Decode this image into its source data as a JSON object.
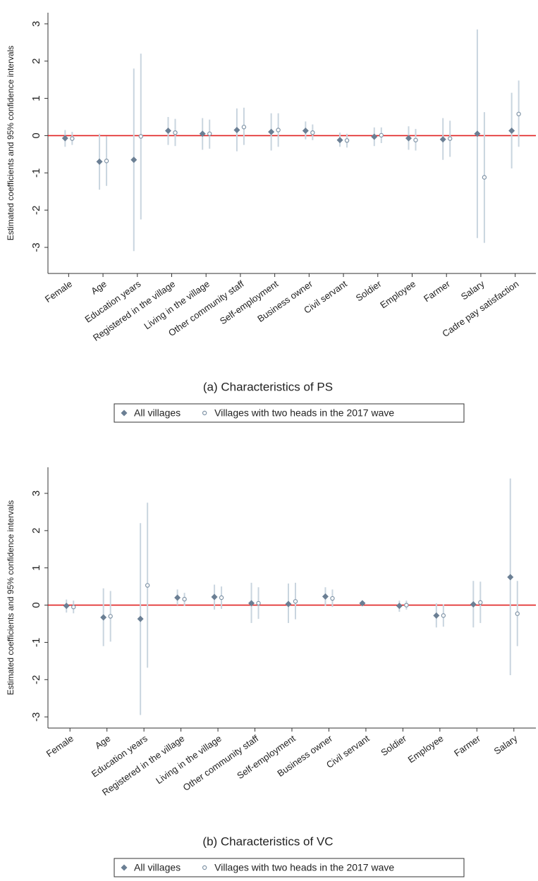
{
  "chart_data": [
    {
      "type": "coefplot",
      "subtitle": "(a) Characteristics of PS",
      "y_label": "Estimated coefficients and 95% confidence intervals",
      "categories": [
        "Female",
        "Age",
        "Education years",
        "Registered in the village",
        "Living in the village",
        "Other community staff",
        "Self-employment",
        "Business owner",
        "Civil servant",
        "Soldier",
        "Employee",
        "Farmer",
        "Salary",
        "Cadre pay satisfaction"
      ],
      "ylim": [
        -3.7,
        3.3
      ],
      "yticks": [
        -3,
        -2,
        -1,
        0,
        1,
        2,
        3
      ],
      "zero_line_color": "#e02020",
      "series": [
        {
          "name": "All villages",
          "color": "#6b7f94",
          "marker": "diamond",
          "values": [
            -0.07,
            -0.7,
            -0.65,
            0.13,
            0.05,
            0.15,
            0.1,
            0.13,
            -0.12,
            -0.03,
            -0.07,
            -0.1,
            0.05,
            0.13
          ],
          "lower": [
            -0.3,
            -1.45,
            -3.1,
            -0.25,
            -0.38,
            -0.42,
            -0.4,
            -0.1,
            -0.3,
            -0.28,
            -0.38,
            -0.65,
            -2.75,
            -0.88
          ],
          "upper": [
            0.15,
            0.05,
            1.8,
            0.5,
            0.47,
            0.73,
            0.6,
            0.38,
            0.08,
            0.22,
            0.25,
            0.47,
            2.85,
            1.15
          ]
        },
        {
          "name": "Villages with two heads in the 2017 wave",
          "color": "#7f93a6",
          "marker": "circle",
          "values": [
            -0.08,
            -0.68,
            -0.02,
            0.08,
            0.05,
            0.23,
            0.15,
            0.08,
            -0.13,
            0.01,
            -0.12,
            -0.08,
            -1.12,
            0.58
          ],
          "lower": [
            -0.25,
            -1.35,
            -2.25,
            -0.28,
            -0.35,
            -0.25,
            -0.3,
            -0.12,
            -0.32,
            -0.2,
            -0.4,
            -0.57,
            -2.88,
            -0.3
          ],
          "upper": [
            0.1,
            -0.02,
            2.2,
            0.45,
            0.43,
            0.75,
            0.6,
            0.3,
            0.05,
            0.22,
            0.18,
            0.4,
            0.63,
            1.48
          ]
        }
      ]
    },
    {
      "type": "coefplot",
      "subtitle": "(b) Characteristics of VC",
      "y_label": "Estimated coefficients and 95% confidence intervals",
      "categories": [
        "Female",
        "Age",
        "Education years",
        "Registered in the village",
        "Living in the village",
        "Other community staff",
        "Self-employment",
        "Business owner",
        "Civil servant",
        "Soldier",
        "Employee",
        "Farmer",
        "Salary"
      ],
      "ylim": [
        -3.3,
        3.7
      ],
      "yticks": [
        -3,
        -2,
        -1,
        0,
        1,
        2,
        3
      ],
      "zero_line_color": "#e02020",
      "series": [
        {
          "name": "All villages",
          "color": "#6b7f94",
          "marker": "diamond",
          "values": [
            -0.02,
            -0.33,
            -0.37,
            0.2,
            0.22,
            0.05,
            0.03,
            0.23,
            0.05,
            -0.02,
            -0.28,
            0.02,
            0.75
          ],
          "lower": [
            -0.2,
            -1.1,
            -2.95,
            0,
            -0.12,
            -0.48,
            -0.48,
            -0.02,
            0.02,
            -0.18,
            -0.6,
            -0.6,
            -1.88
          ],
          "upper": [
            0.15,
            0.45,
            2.2,
            0.42,
            0.55,
            0.6,
            0.58,
            0.48,
            0.08,
            0.12,
            0.05,
            0.65,
            3.4
          ]
        },
        {
          "name": "Villages with two heads in the 2017 wave",
          "color": "#7f93a6",
          "marker": "circle",
          "values": [
            -0.05,
            -0.3,
            0.53,
            0.16,
            0.2,
            0.05,
            0.1,
            0.18,
            null,
            0,
            -0.28,
            0.07,
            -0.23
          ],
          "lower": [
            -0.22,
            -0.98,
            -1.68,
            -0.02,
            -0.1,
            -0.37,
            -0.38,
            -0.05,
            null,
            -0.12,
            -0.58,
            -0.48,
            -1.1
          ],
          "upper": [
            0.12,
            0.38,
            2.75,
            0.33,
            0.5,
            0.48,
            0.6,
            0.42,
            null,
            0.12,
            0.02,
            0.63,
            0.65
          ]
        }
      ]
    }
  ]
}
